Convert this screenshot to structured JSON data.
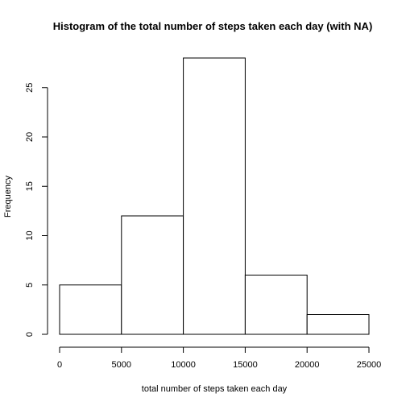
{
  "chart_data": {
    "type": "bar",
    "title": "Histogram of the total number of steps taken each day (with NA)",
    "xlabel": "total number of steps taken each day",
    "ylabel": "Frequency",
    "bins": [
      {
        "from": 0,
        "to": 5000,
        "count": 5
      },
      {
        "from": 5000,
        "to": 10000,
        "count": 12
      },
      {
        "from": 10000,
        "to": 15000,
        "count": 28
      },
      {
        "from": 15000,
        "to": 20000,
        "count": 6
      },
      {
        "from": 20000,
        "to": 25000,
        "count": 2
      }
    ],
    "xlim": [
      0,
      25000
    ],
    "ylim": [
      0,
      28
    ],
    "x_ticks": [
      0,
      5000,
      10000,
      15000,
      20000,
      25000
    ],
    "x_tick_labels": [
      "0",
      "5000",
      "10000",
      "15000",
      "20000",
      "25000"
    ],
    "y_ticks": [
      0,
      5,
      10,
      15,
      20,
      25
    ],
    "y_tick_labels": [
      "0",
      "5",
      "10",
      "15",
      "20",
      "25"
    ],
    "grid": false,
    "colors": {
      "bar_fill": "#ffffff",
      "bar_stroke": "#000000"
    }
  }
}
